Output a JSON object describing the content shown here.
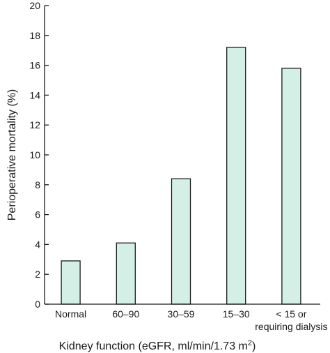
{
  "chart_data": {
    "type": "bar",
    "categories": [
      [
        "Normal"
      ],
      [
        "60–90"
      ],
      [
        "30–59"
      ],
      [
        "15–30"
      ],
      [
        "< 15 or",
        "requiring dialysis"
      ]
    ],
    "values": [
      2.9,
      4.1,
      8.4,
      17.2,
      15.8
    ],
    "ylim": [
      0,
      20
    ],
    "yticks": [
      0,
      2,
      4,
      6,
      8,
      10,
      12,
      14,
      16,
      18,
      20
    ],
    "ytick_labels": [
      "0",
      "2",
      "4",
      "6",
      "8",
      "10",
      "12",
      "14",
      "16",
      "18",
      "20"
    ],
    "ylabel": "Perioperative mortality (%)",
    "xlabel": {
      "main": "Kidney function (eGFR, ml/min/1.73 m",
      "superscript": "2",
      "close": ")"
    },
    "grid": false,
    "legend": "none",
    "colors": {
      "bar_fill": "#d4efe6",
      "bar_stroke": "#1a1a1a",
      "axis": "#1a1a1a"
    }
  }
}
